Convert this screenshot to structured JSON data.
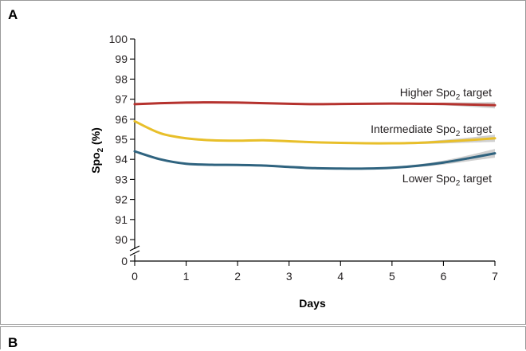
{
  "panels": {
    "a_label": "A",
    "b_label": "B"
  },
  "colors": {
    "higher": "#b5322e",
    "intermediate": "#e8bf2a",
    "lower": "#2f637f",
    "band": "#c8c8c8",
    "axis": "#000000",
    "label_text": "#231f20"
  },
  "chart_data": {
    "type": "line",
    "title": "",
    "xlabel": "Days",
    "ylabel": {
      "prefix": "Spo",
      "sub": "2",
      "suffix": " (%)"
    },
    "xlim": [
      0,
      7
    ],
    "ylim": [
      90,
      100
    ],
    "axis_break": true,
    "x_ticks": [
      "0",
      "1",
      "2",
      "3",
      "4",
      "5",
      "6",
      "7"
    ],
    "y_ticks": [
      "90",
      "91",
      "92",
      "93",
      "94",
      "95",
      "96",
      "97",
      "98",
      "99",
      "100"
    ],
    "y_zero_tick": "0",
    "grid": false,
    "x": [
      0,
      0.5,
      1,
      1.5,
      2,
      2.5,
      3,
      3.5,
      4,
      4.5,
      5,
      5.5,
      6,
      6.5,
      7
    ],
    "series": [
      {
        "key": "higher",
        "label": {
          "prefix": "Higher Spo",
          "sub": "2",
          "suffix": " target"
        },
        "values": [
          96.75,
          96.8,
          96.83,
          96.84,
          96.83,
          96.8,
          96.77,
          96.75,
          96.76,
          96.77,
          96.78,
          96.77,
          96.76,
          96.73,
          96.7
        ],
        "band_width": [
          0.04,
          0.03,
          0.03,
          0.03,
          0.03,
          0.03,
          0.03,
          0.03,
          0.03,
          0.03,
          0.04,
          0.05,
          0.07,
          0.11,
          0.16
        ]
      },
      {
        "key": "intermediate",
        "label": {
          "prefix": "Intermediate Spo",
          "sub": "2",
          "suffix": " target"
        },
        "values": [
          95.9,
          95.3,
          95.05,
          94.95,
          94.93,
          94.95,
          94.9,
          94.85,
          94.82,
          94.8,
          94.8,
          94.82,
          94.88,
          94.96,
          95.05
        ],
        "band_width": [
          0.05,
          0.04,
          0.04,
          0.04,
          0.04,
          0.04,
          0.04,
          0.04,
          0.04,
          0.04,
          0.05,
          0.06,
          0.09,
          0.13,
          0.18
        ]
      },
      {
        "key": "lower",
        "label": {
          "prefix": "Lower Spo",
          "sub": "2",
          "suffix": " target"
        },
        "values": [
          94.4,
          94.0,
          93.78,
          93.73,
          93.72,
          93.69,
          93.62,
          93.56,
          93.54,
          93.54,
          93.58,
          93.68,
          93.84,
          94.06,
          94.3
        ],
        "band_width": [
          0.05,
          0.04,
          0.04,
          0.04,
          0.04,
          0.04,
          0.04,
          0.04,
          0.04,
          0.04,
          0.05,
          0.07,
          0.1,
          0.15,
          0.22
        ]
      }
    ]
  }
}
